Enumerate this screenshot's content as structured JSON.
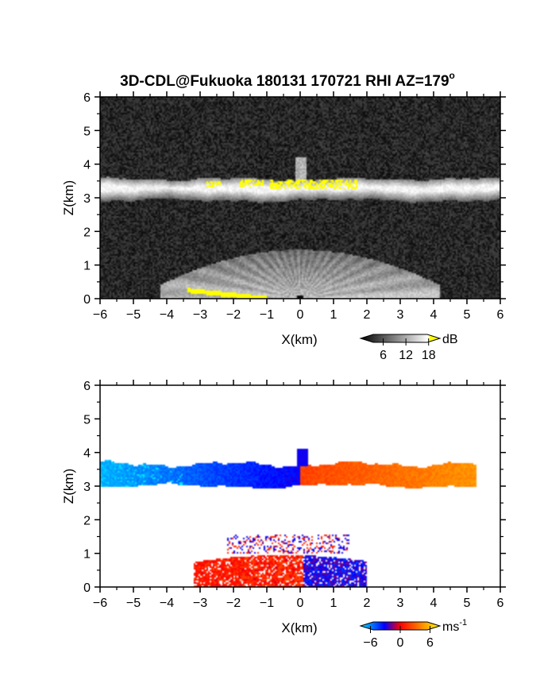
{
  "figure": {
    "title": "3D-CDL@Fukuoka 180131 170721 RHI AZ=179",
    "title_degree_mark": "o"
  },
  "chart_data": [
    {
      "type": "heatmap",
      "quantity": "reflectivity / SNR",
      "xlabel": "X(km)",
      "ylabel": "Z(km)",
      "xlim": [
        -6,
        6
      ],
      "ylim": [
        0,
        6
      ],
      "xticks": [
        "-6",
        "-5",
        "-4",
        "-3",
        "-2",
        "-1",
        "0",
        "1",
        "2",
        "3",
        "4",
        "5",
        "6"
      ],
      "yticks": [
        "0",
        "1",
        "2",
        "3",
        "4",
        "5",
        "6"
      ],
      "colorbar": {
        "unit": "dB",
        "ticks": [
          "6",
          "12",
          "18"
        ],
        "range": [
          0,
          21
        ],
        "colors": [
          "#000000",
          "#ffffff",
          "#ffff00"
        ]
      },
      "features": [
        {
          "name": "cloud layer",
          "x": [
            -6,
            6
          ],
          "z_base": 3.0,
          "z_top": 3.6
        },
        {
          "name": "high-signal core",
          "x": [
            -1.0,
            1.7
          ],
          "z": [
            3.3,
            3.6
          ],
          "value_db": 19
        },
        {
          "name": "boundary layer echo",
          "x": [
            -3.5,
            3.5
          ],
          "z": [
            0,
            1.6
          ]
        },
        {
          "name": "ground clutter",
          "x": [
            -3.3,
            -1.0
          ],
          "z": [
            0,
            0.5
          ],
          "value_db": 19
        }
      ]
    },
    {
      "type": "heatmap",
      "quantity": "Doppler velocity",
      "xlabel": "X(km)",
      "ylabel": "Z(km)",
      "xlim": [
        -6,
        6
      ],
      "ylim": [
        0,
        6
      ],
      "xticks": [
        "-6",
        "-5",
        "-4",
        "-3",
        "-2",
        "-1",
        "0",
        "1",
        "2",
        "3",
        "4",
        "5",
        "6"
      ],
      "yticks": [
        "0",
        "1",
        "2",
        "3",
        "4",
        "5",
        "6"
      ],
      "colorbar": {
        "unit": "ms",
        "unit_exponent": "-1",
        "ticks": [
          "-6",
          "0",
          "6"
        ],
        "range": [
          -8,
          8
        ],
        "colors": [
          "#00e5ff",
          "#0000ff",
          "#ff0000",
          "#ffa000",
          "#ffff00"
        ]
      },
      "features": [
        {
          "name": "cloud layer approaching",
          "x": [
            -6,
            0
          ],
          "z": [
            3.0,
            3.9
          ],
          "velocity": -5
        },
        {
          "name": "cloud layer receding",
          "x": [
            0,
            5.3
          ],
          "z": [
            3.1,
            3.9
          ],
          "velocity": 4
        },
        {
          "name": "boundary layer receding",
          "x": [
            -3.2,
            0
          ],
          "z": [
            0,
            1.0
          ],
          "velocity": 1.5
        },
        {
          "name": "boundary layer approaching",
          "x": [
            0,
            2.0
          ],
          "z": [
            0,
            0.8
          ],
          "velocity": -3
        }
      ]
    }
  ]
}
